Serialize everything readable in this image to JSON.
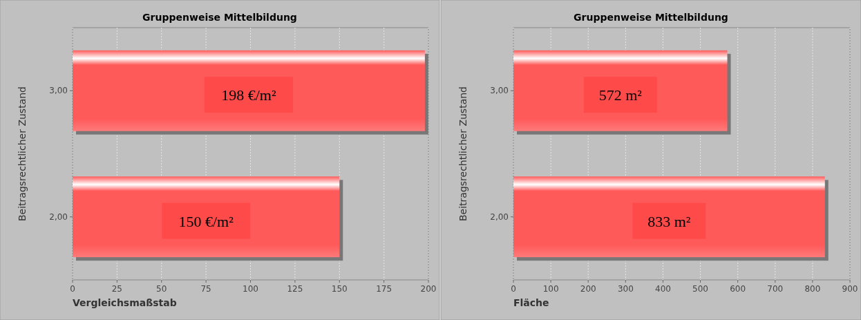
{
  "chart_data": [
    {
      "type": "bar",
      "orientation": "horizontal",
      "title": "Gruppenweise Mittelbildung",
      "xlabel": "Vergleichsmaßstab",
      "ylabel": "Beitragsrechtlicher Zustand",
      "categories": [
        "3,00",
        "2,00"
      ],
      "values": [
        198,
        150
      ],
      "value_labels": [
        "198 €/m²",
        "150 €/m²"
      ],
      "color": "#ff5a5a",
      "xlim": [
        0,
        200
      ],
      "xticks": [
        0,
        25,
        50,
        75,
        100,
        125,
        150,
        175,
        200
      ],
      "grid": "x"
    },
    {
      "type": "bar",
      "orientation": "horizontal",
      "title": "Gruppenweise Mittelbildung",
      "xlabel": "Fläche",
      "ylabel": "Beitragsrechtlicher Zustand",
      "categories": [
        "3,00",
        "2,00"
      ],
      "values": [
        572,
        833
      ],
      "value_labels": [
        "572 m²",
        "833 m²"
      ],
      "color": "#ff5a5a",
      "xlim": [
        0,
        900
      ],
      "xticks": [
        0,
        100,
        200,
        300,
        400,
        500,
        600,
        700,
        800,
        900
      ],
      "grid": "x"
    }
  ]
}
